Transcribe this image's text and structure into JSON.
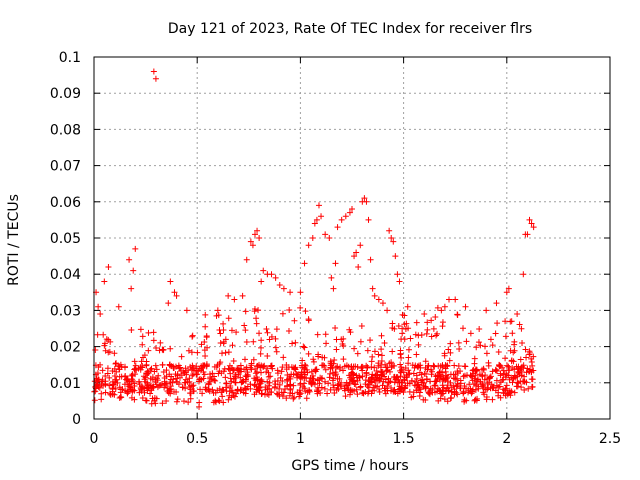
{
  "chart_data": {
    "type": "scatter",
    "title": "Day 121 of 2023, Rate Of TEC Index for receiver flrs",
    "xlabel": "GPS time / hours",
    "ylabel": "ROTI / TECUs",
    "xlim": [
      0,
      2.5
    ],
    "ylim": [
      0,
      0.1
    ],
    "xticks": [
      0,
      0.5,
      1,
      1.5,
      2,
      2.5
    ],
    "xtick_labels": [
      "0",
      "0.5",
      "1",
      "1.5",
      "2",
      "2.5"
    ],
    "yticks": [
      0,
      0.01,
      0.02,
      0.03,
      0.04,
      0.05,
      0.06,
      0.07,
      0.08,
      0.09,
      0.1
    ],
    "ytick_labels": [
      "0",
      "0.01",
      "0.02",
      "0.03",
      "0.04",
      "0.05",
      "0.06",
      "0.07",
      "0.08",
      "0.09",
      "0.1"
    ],
    "grid": true,
    "marker": "plus",
    "colors": {
      "points": "#ff0000",
      "grid": "#a0a0a0",
      "axes": "#000000"
    },
    "series": [
      {
        "name": "ROTI",
        "points": [
          [
            0.01,
            0.035
          ],
          [
            0.02,
            0.031
          ],
          [
            0.03,
            0.029
          ],
          [
            0.05,
            0.038
          ],
          [
            0.07,
            0.042
          ],
          [
            0.12,
            0.031
          ],
          [
            0.17,
            0.044
          ],
          [
            0.19,
            0.041
          ],
          [
            0.2,
            0.047
          ],
          [
            0.18,
            0.036
          ],
          [
            0.29,
            0.096
          ],
          [
            0.3,
            0.094
          ],
          [
            0.37,
            0.038
          ],
          [
            0.39,
            0.035
          ],
          [
            0.4,
            0.034
          ],
          [
            0.36,
            0.032
          ],
          [
            0.45,
            0.03
          ],
          [
            0.6,
            0.03
          ],
          [
            0.65,
            0.034
          ],
          [
            0.68,
            0.033
          ],
          [
            0.72,
            0.034
          ],
          [
            0.74,
            0.044
          ],
          [
            0.76,
            0.049
          ],
          [
            0.77,
            0.048
          ],
          [
            0.78,
            0.051
          ],
          [
            0.79,
            0.052
          ],
          [
            0.8,
            0.05
          ],
          [
            0.81,
            0.038
          ],
          [
            0.82,
            0.041
          ],
          [
            0.84,
            0.04
          ],
          [
            0.86,
            0.04
          ],
          [
            0.88,
            0.039
          ],
          [
            0.9,
            0.037
          ],
          [
            0.92,
            0.036
          ],
          [
            0.95,
            0.035
          ],
          [
            1.0,
            0.035
          ],
          [
            1.02,
            0.043
          ],
          [
            1.04,
            0.048
          ],
          [
            1.06,
            0.05
          ],
          [
            1.07,
            0.054
          ],
          [
            1.08,
            0.055
          ],
          [
            1.09,
            0.059
          ],
          [
            1.1,
            0.056
          ],
          [
            1.12,
            0.051
          ],
          [
            1.14,
            0.05
          ],
          [
            1.15,
            0.039
          ],
          [
            1.16,
            0.036
          ],
          [
            1.17,
            0.043
          ],
          [
            1.18,
            0.053
          ],
          [
            1.2,
            0.055
          ],
          [
            1.22,
            0.056
          ],
          [
            1.24,
            0.057
          ],
          [
            1.25,
            0.058
          ],
          [
            1.26,
            0.045
          ],
          [
            1.27,
            0.046
          ],
          [
            1.28,
            0.042
          ],
          [
            1.29,
            0.048
          ],
          [
            1.3,
            0.06
          ],
          [
            1.31,
            0.061
          ],
          [
            1.32,
            0.06
          ],
          [
            1.33,
            0.055
          ],
          [
            1.34,
            0.044
          ],
          [
            1.35,
            0.036
          ],
          [
            1.36,
            0.034
          ],
          [
            1.38,
            0.033
          ],
          [
            1.4,
            0.032
          ],
          [
            1.42,
            0.03
          ],
          [
            1.43,
            0.052
          ],
          [
            1.44,
            0.05
          ],
          [
            1.45,
            0.049
          ],
          [
            1.46,
            0.045
          ],
          [
            1.47,
            0.04
          ],
          [
            1.48,
            0.038
          ],
          [
            1.52,
            0.031
          ],
          [
            1.6,
            0.029
          ],
          [
            1.7,
            0.031
          ],
          [
            1.72,
            0.033
          ],
          [
            1.75,
            0.033
          ],
          [
            1.8,
            0.031
          ],
          [
            1.9,
            0.03
          ],
          [
            1.95,
            0.032
          ],
          [
            2.0,
            0.035
          ],
          [
            2.01,
            0.036
          ],
          [
            2.05,
            0.029
          ],
          [
            2.08,
            0.04
          ],
          [
            2.09,
            0.051
          ],
          [
            2.1,
            0.051
          ],
          [
            2.11,
            0.055
          ],
          [
            2.12,
            0.054
          ],
          [
            2.13,
            0.053
          ]
        ]
      }
    ],
    "dense_band": {
      "description": "cloud of points 0.003 to 0.03 across 0 to 2.13 h",
      "envelope": [
        [
          0.0,
          0.005,
          0.03
        ],
        [
          0.1,
          0.006,
          0.02
        ],
        [
          0.2,
          0.005,
          0.026
        ],
        [
          0.3,
          0.004,
          0.024
        ],
        [
          0.4,
          0.004,
          0.021
        ],
        [
          0.5,
          0.003,
          0.028
        ],
        [
          0.6,
          0.004,
          0.03
        ],
        [
          0.7,
          0.006,
          0.032
        ],
        [
          0.8,
          0.007,
          0.03
        ],
        [
          0.9,
          0.006,
          0.031
        ],
        [
          1.0,
          0.005,
          0.032
        ],
        [
          1.1,
          0.006,
          0.028
        ],
        [
          1.2,
          0.006,
          0.024
        ],
        [
          1.3,
          0.007,
          0.028
        ],
        [
          1.4,
          0.006,
          0.026
        ],
        [
          1.5,
          0.006,
          0.03
        ],
        [
          1.6,
          0.005,
          0.029
        ],
        [
          1.7,
          0.005,
          0.032
        ],
        [
          1.8,
          0.004,
          0.027
        ],
        [
          1.9,
          0.005,
          0.025
        ],
        [
          2.0,
          0.006,
          0.03
        ],
        [
          2.05,
          0.007,
          0.028
        ],
        [
          2.13,
          0.009,
          0.02
        ]
      ],
      "typical_level": 0.011,
      "count": 1400
    }
  }
}
